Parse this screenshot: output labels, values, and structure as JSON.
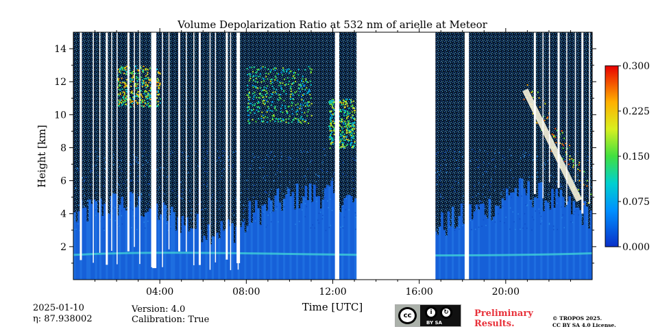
{
  "chart_data": {
    "type": "heatmap",
    "title": "Volume Depolarization Ratio at 532 nm of arielle at Meteor",
    "xlabel": "Time [UTC]",
    "ylabel": "Height [km]",
    "xlim": [
      0,
      24
    ],
    "ylim": [
      0,
      15
    ],
    "x_ticks": [
      "04:00",
      "08:00",
      "12:00",
      "16:00",
      "20:00"
    ],
    "x_tick_values": [
      4,
      8,
      12,
      16,
      20
    ],
    "y_ticks": [
      "2",
      "4",
      "6",
      "8",
      "10",
      "12",
      "14"
    ],
    "y_tick_values": [
      2,
      4,
      6,
      8,
      10,
      12,
      14
    ],
    "colorbar": {
      "range": [
        0.0,
        0.3
      ],
      "ticks": [
        "0.000",
        "0.075",
        "0.150",
        "0.225",
        "0.300"
      ],
      "tick_values": [
        0.0,
        0.075,
        0.15,
        0.225,
        0.3
      ]
    },
    "data_gaps_hours": [
      [
        12.1,
        12.3
      ],
      [
        13.1,
        16.75
      ],
      [
        18.1,
        18.3
      ]
    ],
    "features": [
      {
        "name": "boundary layer aerosol",
        "t": [
          0,
          24
        ],
        "h": [
          0,
          4
        ],
        "value": 0.02
      },
      {
        "name": "cirrus early",
        "t": [
          2,
          4
        ],
        "h": [
          10.5,
          13
        ],
        "value": 0.2
      },
      {
        "name": "cirrus 08-11",
        "t": [
          8,
          11
        ],
        "h": [
          9.5,
          13
        ],
        "value": 0.15
      },
      {
        "name": "cirrus 12",
        "t": [
          11.8,
          13
        ],
        "h": [
          8,
          11
        ],
        "value": 0.17
      },
      {
        "name": "falling streak 20-24",
        "t": [
          20.8,
          24
        ],
        "h": [
          4.5,
          12
        ],
        "value": 0.22
      }
    ]
  },
  "footer": {
    "date": "2025-01-10",
    "eta": "η: 87.938002",
    "version": "Version: 4.0",
    "calibration": "Calibration: True",
    "license_badge": "BY SA",
    "preliminary_line1": "Preliminary",
    "preliminary_line2": "Results.",
    "copyright_line1": "© TROPOS 2025.",
    "copyright_line2": "CC BY SA 4.0 License."
  },
  "colors": {
    "bl_blue": "#1565d8",
    "noise_dark": "#0a1a2c",
    "high": "#ff2a00",
    "mid": "#ffe000"
  }
}
